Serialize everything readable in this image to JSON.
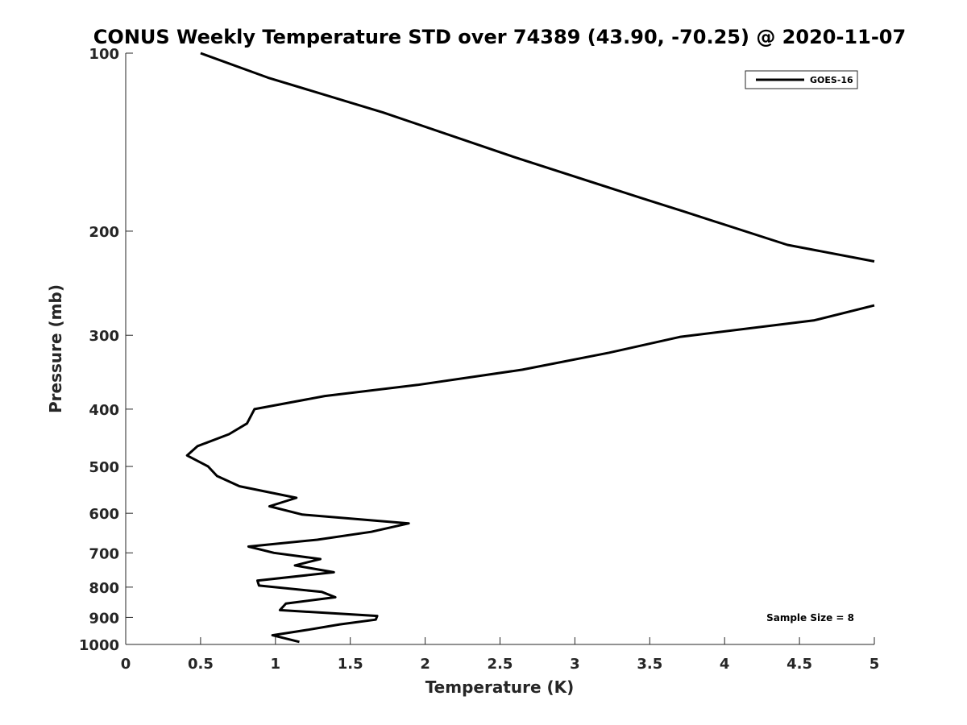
{
  "chart_data": {
    "type": "line",
    "title": "CONUS Weekly Temperature STD over 74389 (43.90, -70.25) @ 2020-11-07",
    "xlabel": "Temperature (K)",
    "ylabel": "Pressure (mb)",
    "xlim": [
      0,
      5
    ],
    "ylim": [
      100,
      1000
    ],
    "y_scale": "log",
    "y_reversed": true,
    "grid": false,
    "x_ticks": [
      "0",
      "0.5",
      "1",
      "1.5",
      "2",
      "2.5",
      "3",
      "3.5",
      "4",
      "4.5",
      "5"
    ],
    "y_ticks": [
      "100",
      "200",
      "300",
      "400",
      "500",
      "600",
      "700",
      "800",
      "900",
      "1000"
    ],
    "legend": {
      "position": "top-right",
      "entries": [
        "GOES-16"
      ]
    },
    "annotation": "Sample Size = 8",
    "series": [
      {
        "name": "GOES-16",
        "color": "#000000",
        "points": [
          [
            0.5,
            100
          ],
          [
            0.95,
            110
          ],
          [
            1.72,
            126
          ],
          [
            2.6,
            150
          ],
          [
            3.45,
            176
          ],
          [
            3.72,
            185
          ],
          [
            4.42,
            211
          ],
          [
            5.0,
            225
          ]
        ]
      },
      {
        "name": "",
        "color": "#000000",
        "points": [
          [
            5.0,
            267
          ],
          [
            4.6,
            283
          ],
          [
            3.7,
            302
          ],
          [
            3.23,
            321
          ],
          [
            2.65,
            343
          ],
          [
            1.95,
            364
          ],
          [
            1.33,
            380
          ],
          [
            0.86,
            400
          ],
          [
            0.81,
            423
          ],
          [
            0.69,
            441
          ],
          [
            0.48,
            462
          ],
          [
            0.41,
            479
          ],
          [
            0.55,
            500
          ],
          [
            0.61,
            519
          ],
          [
            0.76,
            540
          ],
          [
            1.14,
            565
          ],
          [
            0.96,
            584
          ],
          [
            1.18,
            603
          ],
          [
            1.89,
            624
          ],
          [
            1.64,
            645
          ],
          [
            1.28,
            665
          ],
          [
            0.82,
            683
          ],
          [
            0.99,
            700
          ],
          [
            1.3,
            717
          ],
          [
            1.13,
            735
          ],
          [
            1.39,
            755
          ],
          [
            0.88,
            780
          ],
          [
            0.89,
            795
          ],
          [
            1.31,
            815
          ],
          [
            1.4,
            832
          ],
          [
            1.07,
            853
          ],
          [
            1.03,
            875
          ],
          [
            1.68,
            895
          ],
          [
            1.67,
            908
          ],
          [
            1.43,
            925
          ],
          [
            1.21,
            945
          ],
          [
            0.98,
            965
          ],
          [
            1.16,
            990
          ]
        ]
      }
    ]
  }
}
